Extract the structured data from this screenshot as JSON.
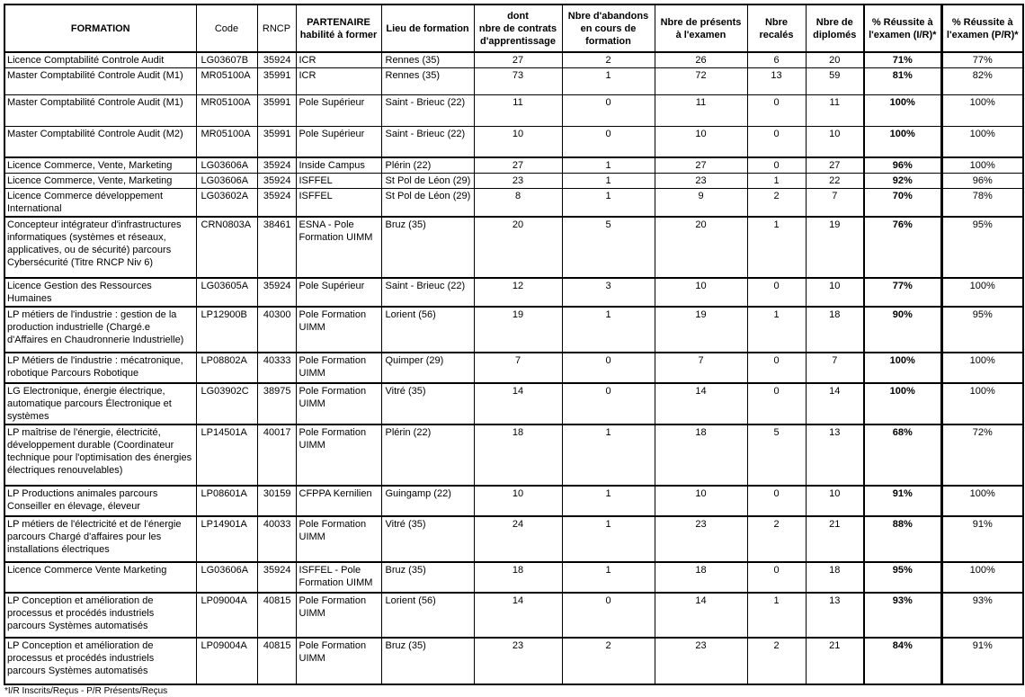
{
  "table": {
    "columns": [
      {
        "key": "formation",
        "label": "FORMATION"
      },
      {
        "key": "code",
        "label": "Code"
      },
      {
        "key": "rncp",
        "label": "RNCP"
      },
      {
        "key": "partenaire",
        "label": "PARTENAIRE\nhabilité à former"
      },
      {
        "key": "lieu",
        "label": "Lieu de formation"
      },
      {
        "key": "contrats",
        "label": "dont\nnbre de contrats\nd'apprentissage"
      },
      {
        "key": "abandons",
        "label": "Nbre d'abandons en cours de formation"
      },
      {
        "key": "presents",
        "label": "Nbre de présents à l'examen"
      },
      {
        "key": "recales",
        "label": "Nbre recalés"
      },
      {
        "key": "diplomes",
        "label": "Nbre de\ndiplomés"
      },
      {
        "key": "reussite_ir",
        "label": "% Réussite à l'examen (I/R)*"
      },
      {
        "key": "reussite_pr",
        "label": "% Réussite à l'examen  (P/R)*"
      }
    ],
    "rows": [
      {
        "formation": "Licence Comptabilité Controle Audit",
        "code": "LG03607B",
        "rncp": "35924",
        "partenaire": "ICR",
        "lieu": "Rennes (35)",
        "contrats": "27",
        "abandons": "2",
        "presents": "26",
        "recales": "6",
        "diplomes": "20",
        "reussite_ir": "71%",
        "reussite_pr": "77%"
      },
      {
        "formation": "Master Comptabilité Controle Audit (M1)",
        "code": "MR05100A",
        "rncp": "35991",
        "partenaire": "ICR",
        "lieu": "Rennes (35)",
        "contrats": "73",
        "abandons": "1",
        "presents": "72",
        "recales": "13",
        "diplomes": "59",
        "reussite_ir": "81%",
        "reussite_pr": "82%"
      },
      {
        "formation": "Master Comptabilité Controle Audit (M1)",
        "code": "MR05100A",
        "rncp": "35991",
        "partenaire": "Pole Supérieur",
        "lieu": "Saint - Brieuc (22)",
        "contrats": "11",
        "abandons": "0",
        "presents": "11",
        "recales": "0",
        "diplomes": "11",
        "reussite_ir": "100%",
        "reussite_pr": "100%"
      },
      {
        "formation": "Master Comptabilité Controle Audit (M2)",
        "code": "MR05100A",
        "rncp": "35991",
        "partenaire": "Pole Supérieur",
        "lieu": "Saint - Brieuc (22)",
        "contrats": "10",
        "abandons": "0",
        "presents": "10",
        "recales": "0",
        "diplomes": "10",
        "reussite_ir": "100%",
        "reussite_pr": "100%"
      },
      {
        "formation": "Licence Commerce, Vente, Marketing",
        "code": "LG03606A",
        "rncp": "35924",
        "partenaire": "Inside Campus",
        "lieu": "Plérin (22)",
        "contrats": "27",
        "abandons": "1",
        "presents": "27",
        "recales": "0",
        "diplomes": "27",
        "reussite_ir": "96%",
        "reussite_pr": "100%"
      },
      {
        "formation": "Licence Commerce, Vente, Marketing",
        "code": "LG03606A",
        "rncp": "35924",
        "partenaire": "ISFFEL",
        "lieu": "St Pol de Léon (29)",
        "contrats": "23",
        "abandons": "1",
        "presents": "23",
        "recales": "1",
        "diplomes": "22",
        "reussite_ir": "92%",
        "reussite_pr": "96%"
      },
      {
        "formation": "Licence Commerce développement International",
        "code": "LG03602A",
        "rncp": "35924",
        "partenaire": "ISFFEL",
        "lieu": "St Pol de Léon (29)",
        "contrats": "8",
        "abandons": "1",
        "presents": "9",
        "recales": "2",
        "diplomes": "7",
        "reussite_ir": "70%",
        "reussite_pr": "78%"
      },
      {
        "formation": "Concepteur intégrateur d'infrastructures informatiques (systèmes et réseaux, applicatives, ou de sécurité) parcours Cybersécurité (Titre RNCP Niv 6)",
        "code": "CRN0803A",
        "rncp": "38461",
        "partenaire": "ESNA - Pole Formation UIMM",
        "lieu": "Bruz (35)",
        "contrats": "20",
        "abandons": "5",
        "presents": "20",
        "recales": "1",
        "diplomes": "19",
        "reussite_ir": "76%",
        "reussite_pr": "95%"
      },
      {
        "formation": "Licence Gestion des Ressources Humaines",
        "code": "LG03605A",
        "rncp": "35924",
        "partenaire": "Pole Supérieur",
        "lieu": "Saint - Brieuc (22)",
        "contrats": "12",
        "abandons": "3",
        "presents": "10",
        "recales": "0",
        "diplomes": "10",
        "reussite_ir": "77%",
        "reussite_pr": "100%"
      },
      {
        "formation": "LP métiers de l'industrie : gestion de la production industrielle (Chargé.e d'Affaires en Chaudronnerie Industrielle)",
        "code": "LP12900B",
        "rncp": "40300",
        "partenaire": "Pole Formation UIMM",
        "lieu": "Lorient (56)",
        "contrats": "19",
        "abandons": "1",
        "presents": "19",
        "recales": "1",
        "diplomes": "18",
        "reussite_ir": "90%",
        "reussite_pr": "95%"
      },
      {
        "formation": "LP Métiers de l'industrie : mécatronique, robotique Parcours Robotique",
        "code": "LP08802A",
        "rncp": "40333",
        "partenaire": "Pole Formation UIMM",
        "lieu": "Quimper (29)",
        "contrats": "7",
        "abandons": "0",
        "presents": "7",
        "recales": "0",
        "diplomes": "7",
        "reussite_ir": "100%",
        "reussite_pr": "100%"
      },
      {
        "formation": "LG Electronique, énergie électrique, automatique parcours Électronique et systèmes",
        "code": "LG03902C",
        "rncp": "38975",
        "partenaire": "Pole Formation UIMM",
        "lieu": "Vitré (35)",
        "contrats": "14",
        "abandons": "0",
        "presents": "14",
        "recales": "0",
        "diplomes": "14",
        "reussite_ir": "100%",
        "reussite_pr": "100%"
      },
      {
        "formation": "LP maîtrise de l'énergie, électricité, développement durable (Coordinateur technique pour l'optimisation des énergies électriques renouvelables)",
        "code": "LP14501A",
        "rncp": "40017",
        "partenaire": "Pole Formation UIMM",
        "lieu": "Plérin (22)",
        "contrats": "18",
        "abandons": "1",
        "presents": "18",
        "recales": "5",
        "diplomes": "13",
        "reussite_ir": "68%",
        "reussite_pr": "72%"
      },
      {
        "formation": "LP Productions animales parcours Conseiller en élevage, éleveur",
        "code": "LP08601A",
        "rncp": "30159",
        "partenaire": "CFPPA Kernilien",
        "lieu": "Guingamp (22)",
        "contrats": "10",
        "abandons": "1",
        "presents": "10",
        "recales": "0",
        "diplomes": "10",
        "reussite_ir": "91%",
        "reussite_pr": "100%"
      },
      {
        "formation": "LP métiers de l'électricité et de l'énergie parcours Chargé d'affaires pour les installations électriques",
        "code": "LP14901A",
        "rncp": "40033",
        "partenaire": "Pole Formation UIMM",
        "lieu": "Vitré (35)",
        "contrats": "24",
        "abandons": "1",
        "presents": "23",
        "recales": "2",
        "diplomes": "21",
        "reussite_ir": "88%",
        "reussite_pr": "91%"
      },
      {
        "formation": "Licence Commerce Vente Marketing",
        "code": "LG03606A",
        "rncp": "35924",
        "partenaire": "ISFFEL - Pole Formation UIMM",
        "lieu": "Bruz (35)",
        "contrats": "18",
        "abandons": "1",
        "presents": "18",
        "recales": "0",
        "diplomes": "18",
        "reussite_ir": "95%",
        "reussite_pr": "100%"
      },
      {
        "formation": "LP Conception et amélioration de processus et procédés industriels parcours Systèmes automatisés",
        "code": "LP09004A",
        "rncp": "40815",
        "partenaire": "Pole Formation UIMM",
        "lieu": "Lorient (56)",
        "contrats": "14",
        "abandons": "0",
        "presents": "14",
        "recales": "1",
        "diplomes": "13",
        "reussite_ir": "93%",
        "reussite_pr": "93%"
      },
      {
        "formation": "LP Conception et amélioration de processus et procédés industriels parcours Systèmes automatisés",
        "code": "LP09004A",
        "rncp": "40815",
        "partenaire": "Pole Formation UIMM",
        "lieu": "Bruz (35)",
        "contrats": "23",
        "abandons": "2",
        "presents": "23",
        "recales": "2",
        "diplomes": "21",
        "reussite_ir": "84%",
        "reussite_pr": "91%"
      }
    ],
    "footnote": "*I/R Inscrits/Reçus - P/R Présents/Reçus"
  }
}
